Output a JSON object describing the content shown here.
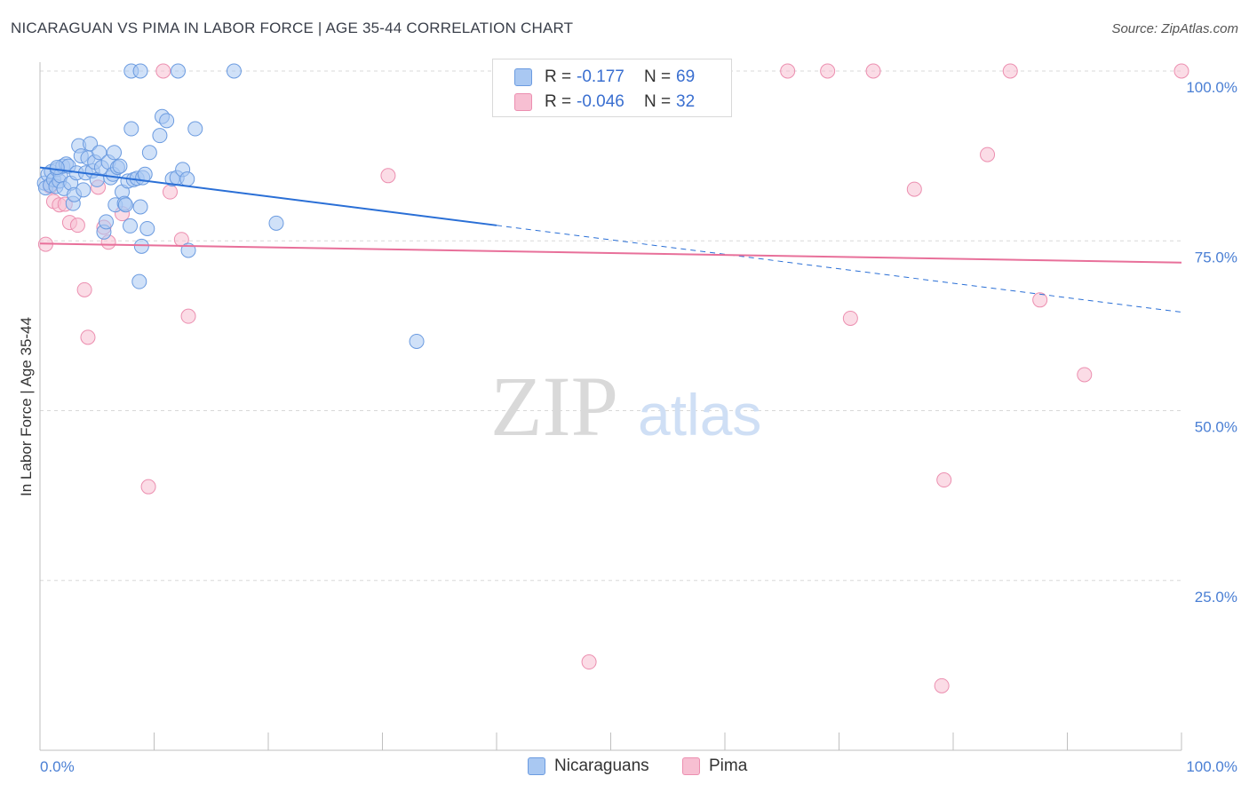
{
  "header": {
    "title": "NICARAGUAN VS PIMA IN LABOR FORCE | AGE 35-44 CORRELATION CHART",
    "source": "Source: ZipAtlas.com"
  },
  "watermark": {
    "zip": "ZIP",
    "atlas": "atlas"
  },
  "colors": {
    "blue_fill": "#a9c8f2",
    "blue_stroke": "#6b9be0",
    "blue_line": "#2a6fd6",
    "pink_fill": "#f7bfd2",
    "pink_stroke": "#ec8fb0",
    "pink_line": "#e8709a",
    "grid": "#d8d8d8",
    "tick_text": "#4a7fd4"
  },
  "legend": {
    "rows": [
      {
        "r_label": "R =",
        "r_value": "-0.177",
        "n_label": "N =",
        "n_value": "69"
      },
      {
        "r_label": "R =",
        "r_value": "-0.046",
        "n_label": "N =",
        "n_value": "32"
      }
    ]
  },
  "bottom_legend": {
    "series1": "Nicaraguans",
    "series2": "Pima"
  },
  "chart_data": {
    "type": "scatter",
    "title": "NICARAGUAN VS PIMA IN LABOR FORCE | AGE 35-44 CORRELATION CHART",
    "xlabel": "",
    "ylabel": "In Labor Force | Age 35-44",
    "xlim": [
      0,
      100
    ],
    "ylim": [
      0,
      102
    ],
    "x_tick_labels": [
      "0.0%",
      "100.0%"
    ],
    "y_ticks": [
      25,
      50,
      75,
      100
    ],
    "y_tick_labels": [
      "25.0%",
      "50.0%",
      "75.0%",
      "100.0%"
    ],
    "series": [
      {
        "name": "Nicaraguans",
        "r": -0.177,
        "n": 69,
        "trend": {
          "x0": 0,
          "y0": 85.8,
          "x1": 100,
          "y1": 64.5,
          "solid_until": 40
        },
        "points": [
          [
            0.4,
            83.5
          ],
          [
            0.5,
            82.8
          ],
          [
            0.7,
            84.8
          ],
          [
            0.9,
            83.2
          ],
          [
            1.0,
            85.2
          ],
          [
            1.2,
            84.0
          ],
          [
            1.4,
            83.0
          ],
          [
            1.5,
            85.5
          ],
          [
            1.7,
            83.8
          ],
          [
            1.8,
            84.6
          ],
          [
            2.0,
            86.0
          ],
          [
            2.1,
            82.7
          ],
          [
            2.3,
            86.3
          ],
          [
            2.5,
            86.0
          ],
          [
            2.7,
            83.5
          ],
          [
            2.9,
            80.5
          ],
          [
            3.0,
            81.8
          ],
          [
            3.2,
            85.0
          ],
          [
            3.4,
            89.0
          ],
          [
            3.6,
            87.5
          ],
          [
            3.8,
            82.5
          ],
          [
            4.0,
            85.0
          ],
          [
            4.2,
            87.2
          ],
          [
            4.4,
            89.3
          ],
          [
            4.6,
            85.3
          ],
          [
            4.8,
            86.6
          ],
          [
            5.0,
            84.0
          ],
          [
            5.2,
            88.0
          ],
          [
            5.4,
            85.8
          ],
          [
            5.6,
            76.3
          ],
          [
            5.8,
            77.8
          ],
          [
            6.0,
            86.6
          ],
          [
            6.2,
            84.3
          ],
          [
            6.4,
            84.8
          ],
          [
            6.5,
            88.0
          ],
          [
            6.6,
            80.3
          ],
          [
            6.8,
            85.8
          ],
          [
            7.0,
            86.0
          ],
          [
            7.2,
            82.2
          ],
          [
            7.4,
            80.5
          ],
          [
            7.5,
            80.3
          ],
          [
            7.7,
            83.8
          ],
          [
            7.9,
            77.2
          ],
          [
            8.0,
            91.5
          ],
          [
            8.2,
            84.0
          ],
          [
            8.5,
            84.2
          ],
          [
            8.7,
            69.0
          ],
          [
            8.8,
            80.0
          ],
          [
            8.9,
            74.2
          ],
          [
            9.0,
            84.3
          ],
          [
            9.2,
            84.8
          ],
          [
            9.4,
            76.8
          ],
          [
            9.6,
            88.0
          ],
          [
            8.0,
            100.0
          ],
          [
            8.8,
            100.0
          ],
          [
            12.1,
            100.0
          ],
          [
            17.0,
            100.0
          ],
          [
            10.5,
            90.5
          ],
          [
            10.7,
            93.3
          ],
          [
            11.1,
            92.7
          ],
          [
            11.6,
            84.1
          ],
          [
            12.0,
            84.3
          ],
          [
            12.5,
            85.5
          ],
          [
            12.9,
            84.1
          ],
          [
            13.0,
            73.6
          ],
          [
            13.6,
            91.5
          ],
          [
            20.7,
            77.6
          ],
          [
            33.0,
            60.2
          ],
          [
            1.5,
            85.8
          ]
        ]
      },
      {
        "name": "Pima",
        "r": -0.046,
        "n": 32,
        "trend": {
          "x0": 0,
          "y0": 74.6,
          "x1": 100,
          "y1": 71.8
        },
        "points": [
          [
            0.5,
            74.5
          ],
          [
            0.9,
            83.0
          ],
          [
            1.2,
            80.8
          ],
          [
            1.7,
            80.3
          ],
          [
            2.2,
            80.4
          ],
          [
            2.6,
            77.7
          ],
          [
            3.3,
            77.3
          ],
          [
            3.9,
            67.8
          ],
          [
            4.2,
            60.8
          ],
          [
            5.1,
            82.9
          ],
          [
            5.6,
            77.0
          ],
          [
            6.0,
            74.8
          ],
          [
            7.2,
            79.0
          ],
          [
            9.5,
            38.8
          ],
          [
            10.8,
            100.0
          ],
          [
            11.4,
            82.2
          ],
          [
            12.4,
            75.2
          ],
          [
            13.0,
            63.9
          ],
          [
            30.5,
            84.6
          ],
          [
            48.1,
            13.0
          ],
          [
            65.5,
            100.0
          ],
          [
            69.0,
            100.0
          ],
          [
            71.0,
            63.6
          ],
          [
            73.0,
            100.0
          ],
          [
            76.6,
            82.6
          ],
          [
            79.0,
            9.5
          ],
          [
            79.2,
            39.8
          ],
          [
            83.0,
            87.7
          ],
          [
            85.0,
            100.0
          ],
          [
            87.6,
            66.3
          ],
          [
            91.5,
            55.3
          ],
          [
            100.0,
            100.0
          ]
        ]
      }
    ]
  }
}
